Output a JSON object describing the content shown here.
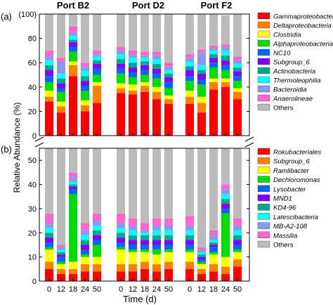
{
  "figure": {
    "y_axis_label": "Relative Abundance (%)",
    "x_axis_label": "Time (d)",
    "port_titles": [
      "Port B2",
      "Port D2",
      "Port F2"
    ],
    "time_ticks": [
      "0",
      "12",
      "18",
      "24",
      "50"
    ]
  },
  "chart_data": [
    {
      "panel": "(a)",
      "type": "bar",
      "stacked": true,
      "ylim": [
        0,
        100
      ],
      "y_ticks": [
        "0",
        "20",
        "40",
        "60",
        "80",
        "(100)"
      ],
      "x_groups": [
        "Port B2",
        "Port D2",
        "Port F2"
      ],
      "categories": [
        "0",
        "12",
        "18",
        "24",
        "50"
      ],
      "legend_position": "right",
      "series": [
        {
          "name": "Gammaproteobacteria",
          "color": "#ff0000",
          "values": [
            [
              28,
              19,
              49,
              20,
              27
            ],
            [
              35,
              34,
              36,
              30,
              26
            ],
            [
              26,
              19,
              38,
              40,
              30
            ]
          ]
        },
        {
          "name": "Deltaproteobacteria",
          "color": "#ff7f00",
          "values": [
            [
              4,
              5,
              9,
              5,
              14
            ],
            [
              4,
              3,
              5,
              6,
              4
            ],
            [
              6,
              8,
              6,
              4,
              6
            ]
          ]
        },
        {
          "name": "Clostridia",
          "color": "#ffff00",
          "values": [
            [
              5,
              4,
              3,
              4,
              3
            ],
            [
              4,
              5,
              3,
              4,
              3
            ],
            [
              5,
              5,
              3,
              3,
              3
            ]
          ]
        },
        {
          "name": "Alphaproteobacteria",
          "color": "#00dd00",
          "values": [
            [
              7,
              8,
              8,
              8,
              6
            ],
            [
              8,
              6,
              6,
              7,
              6
            ],
            [
              8,
              10,
              9,
              7,
              6
            ]
          ]
        },
        {
          "name": "NC10",
          "color": "#0066ff",
          "values": [
            [
              5,
              3,
              4,
              4,
              5
            ],
            [
              4,
              4,
              4,
              4,
              5
            ],
            [
              4,
              4,
              4,
              4,
              4
            ]
          ]
        },
        {
          "name": "Subgroup_6",
          "color": "#7f00ff",
          "values": [
            [
              5,
              4,
              4,
              4,
              4
            ],
            [
              4,
              4,
              4,
              4,
              4
            ],
            [
              5,
              5,
              4,
              4,
              4
            ]
          ]
        },
        {
          "name": "Actinobacteria",
          "color": "#00aa88",
          "values": [
            [
              4,
              4,
              2,
              4,
              3
            ],
            [
              4,
              4,
              3,
              4,
              3
            ],
            [
              3,
              3,
              3,
              4,
              3
            ]
          ]
        },
        {
          "name": "Thermoleophilia",
          "color": "#00ffff",
          "values": [
            [
              4,
              4,
              3,
              4,
              3
            ],
            [
              4,
              4,
              3,
              4,
              3
            ],
            [
              4,
              4,
              3,
              4,
              3
            ]
          ]
        },
        {
          "name": "Bacteroidia",
          "color": "#8899ee",
          "values": [
            [
              3,
              10,
              3,
              4,
              2
            ],
            [
              3,
              3,
              2,
              3,
              3
            ],
            [
              3,
              10,
              2,
              3,
              3
            ]
          ]
        },
        {
          "name": "Anaerolineae",
          "color": "#ff66cc",
          "values": [
            [
              5,
              3,
              5,
              3,
              3
            ],
            [
              3,
              3,
              3,
              3,
              3
            ],
            [
              3,
              3,
              2,
              2,
              3
            ]
          ]
        },
        {
          "name": "Others",
          "color": "#bbbbbb",
          "values": [
            [
              30,
              36,
              10,
              40,
              30
            ],
            [
              27,
              30,
              31,
              31,
              40
            ],
            [
              33,
              29,
              26,
              24,
              35
            ]
          ]
        }
      ]
    },
    {
      "panel": "(b)",
      "type": "bar",
      "stacked": true,
      "ylim": [
        0,
        55
      ],
      "y_ticks": [
        "0",
        "10",
        "20",
        "30",
        "40",
        "50"
      ],
      "x_groups": [
        "Port B2",
        "Port D2",
        "Port F2"
      ],
      "categories": [
        "0",
        "12",
        "18",
        "24",
        "50"
      ],
      "legend_position": "right",
      "series": [
        {
          "name": "Rokubacteriales",
          "color": "#ff0000",
          "values": [
            [
              5,
              3,
              3,
              4,
              4
            ],
            [
              4,
              4,
              5,
              4,
              5
            ],
            [
              5,
              3,
              4,
              3,
              6
            ]
          ]
        },
        {
          "name": "Subgroup_6",
          "color": "#ff7f00",
          "values": [
            [
              3,
              2,
              2,
              3,
              3
            ],
            [
              3,
              3,
              3,
              3,
              3
            ],
            [
              3,
              2,
              3,
              3,
              3
            ]
          ]
        },
        {
          "name": "Ramlibacter",
          "color": "#ffff00",
          "values": [
            [
              5,
              2,
              3,
              3,
              3
            ],
            [
              6,
              5,
              4,
              4,
              4
            ],
            [
              4,
              2,
              4,
              4,
              3
            ]
          ]
        },
        {
          "name": "Dechloromonas",
          "color": "#00dd00",
          "values": [
            [
              1,
              1,
              28,
              1,
              5
            ],
            [
              1,
              1,
              1,
              2,
              1
            ],
            [
              1,
              1,
              1,
              18,
              1
            ]
          ]
        },
        {
          "name": "Lysobacter",
          "color": "#0066ff",
          "values": [
            [
              2,
              2,
              2,
              2,
              2
            ],
            [
              2,
              2,
              2,
              2,
              2
            ],
            [
              2,
              1,
              2,
              2,
              2
            ]
          ]
        },
        {
          "name": "MND1",
          "color": "#7f00ff",
          "values": [
            [
              2,
              1,
              1,
              2,
              2
            ],
            [
              2,
              2,
              2,
              2,
              2
            ],
            [
              2,
              1,
              1,
              2,
              2
            ]
          ]
        },
        {
          "name": "KD4-96",
          "color": "#00aa88",
          "values": [
            [
              2,
              1,
              1,
              2,
              2
            ],
            [
              2,
              2,
              2,
              2,
              2
            ],
            [
              2,
              1,
              1,
              2,
              2
            ]
          ]
        },
        {
          "name": "Latescibacteria",
          "color": "#00ffff",
          "values": [
            [
              2,
              1,
              1,
              2,
              2
            ],
            [
              2,
              2,
              1,
              2,
              2
            ],
            [
              2,
              1,
              1,
              2,
              2
            ]
          ]
        },
        {
          "name": "MB-A2-108",
          "color": "#8899ee",
          "values": [
            [
              2,
              1,
              2,
              2,
              2
            ],
            [
              2,
              2,
              1,
              2,
              2
            ],
            [
              2,
              1,
              2,
              2,
              2
            ]
          ]
        },
        {
          "name": "Massilia",
          "color": "#ff66cc",
          "values": [
            [
              4,
              1,
              2,
              3,
              3
            ],
            [
              4,
              3,
              3,
              3,
              3
            ],
            [
              4,
              1,
              2,
              2,
              3
            ]
          ]
        },
        {
          "name": "Others",
          "color": "#bbbbbb",
          "values": [
            [
              72,
              85,
              55,
              76,
              72
            ],
            [
              72,
              74,
              77,
              74,
              74
            ],
            [
              73,
              86,
              79,
              60,
              74
            ]
          ]
        }
      ]
    }
  ]
}
